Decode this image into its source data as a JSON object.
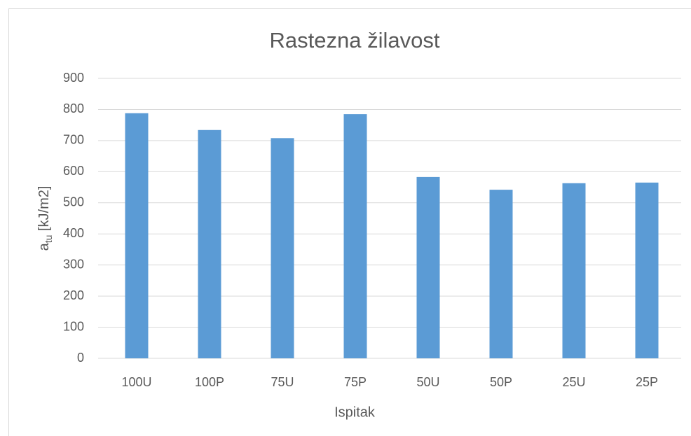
{
  "chart_data": {
    "type": "bar",
    "title": "Rastezna žilavost",
    "x_label": "Ispitak",
    "y_label": [
      "a",
      "tu",
      " [kJ/m2]"
    ],
    "categories": [
      "100U",
      "100P",
      "75U",
      "75P",
      "50U",
      "50P",
      "25U",
      "25P"
    ],
    "values": [
      788,
      734,
      708,
      785,
      583,
      542,
      563,
      565
    ],
    "color": "#5b9bd5",
    "ylim": [
      0,
      900
    ],
    "yticks": [
      0,
      100,
      200,
      300,
      400,
      500,
      600,
      700,
      800,
      900
    ],
    "grid": true
  }
}
